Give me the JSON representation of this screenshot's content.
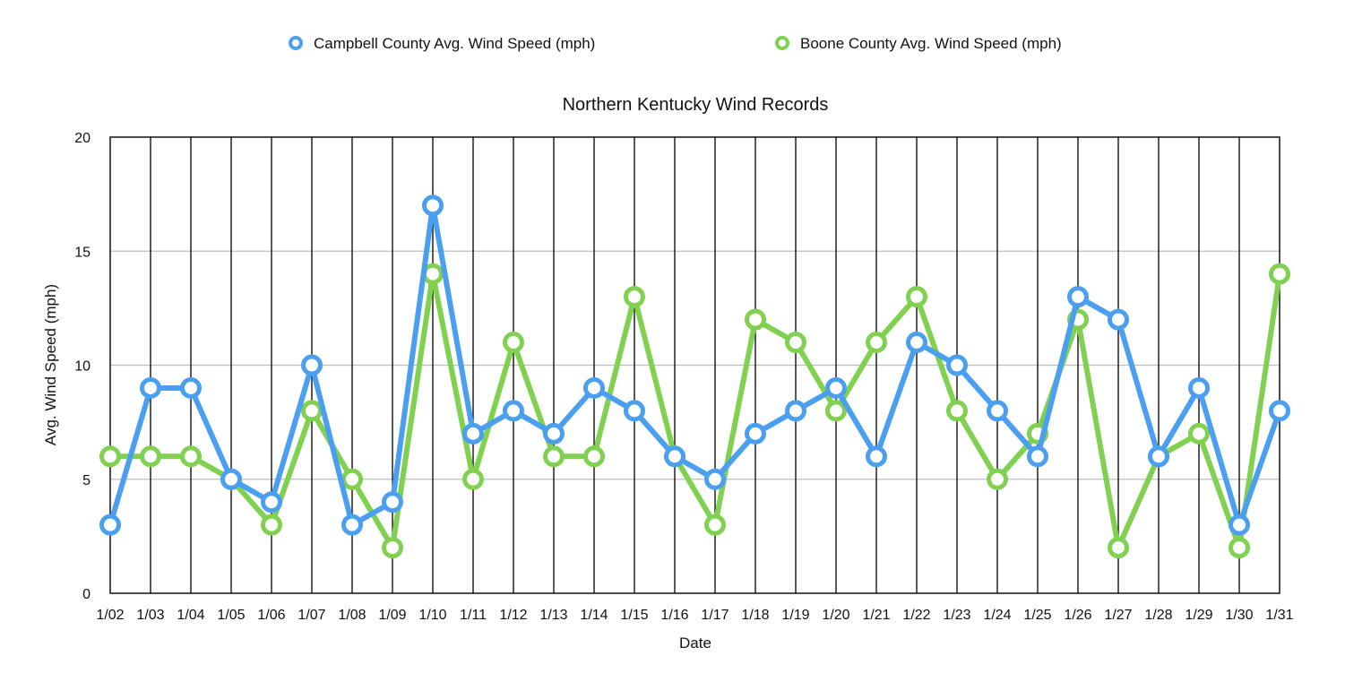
{
  "chart_data": {
    "type": "line",
    "title": "Northern Kentucky Wind Records",
    "xlabel": "Date",
    "ylabel": "Avg. Wind Speed (mph)",
    "ylim": [
      0,
      20
    ],
    "yticks": [
      "0",
      "5",
      "10",
      "15",
      "20"
    ],
    "grid": true,
    "legend_position": "top",
    "categories": [
      "1/02",
      "1/03",
      "1/04",
      "1/05",
      "1/06",
      "1/07",
      "1/08",
      "1/09",
      "1/10",
      "1/11",
      "1/12",
      "1/13",
      "1/14",
      "1/15",
      "1/16",
      "1/17",
      "1/18",
      "1/19",
      "1/20",
      "1/21",
      "1/22",
      "1/23",
      "1/24",
      "1/25",
      "1/26",
      "1/27",
      "1/28",
      "1/29",
      "1/30",
      "1/31"
    ],
    "series": [
      {
        "name": "Campbell County Avg. Wind Speed (mph)",
        "color": "#4a9ff0",
        "values": [
          3,
          9,
          9,
          5,
          4,
          10,
          3,
          4,
          17,
          7,
          8,
          7,
          9,
          8,
          6,
          5,
          7,
          8,
          9,
          6,
          11,
          10,
          8,
          6,
          13,
          12,
          6,
          9,
          3,
          8
        ]
      },
      {
        "name": "Boone County Avg. Wind Speed (mph)",
        "color": "#7fd14f",
        "values": [
          6,
          6,
          6,
          5,
          3,
          8,
          5,
          2,
          14,
          5,
          11,
          6,
          6,
          13,
          6,
          3,
          12,
          11,
          8,
          11,
          13,
          8,
          5,
          7,
          12,
          2,
          6,
          7,
          2,
          14
        ]
      }
    ]
  }
}
